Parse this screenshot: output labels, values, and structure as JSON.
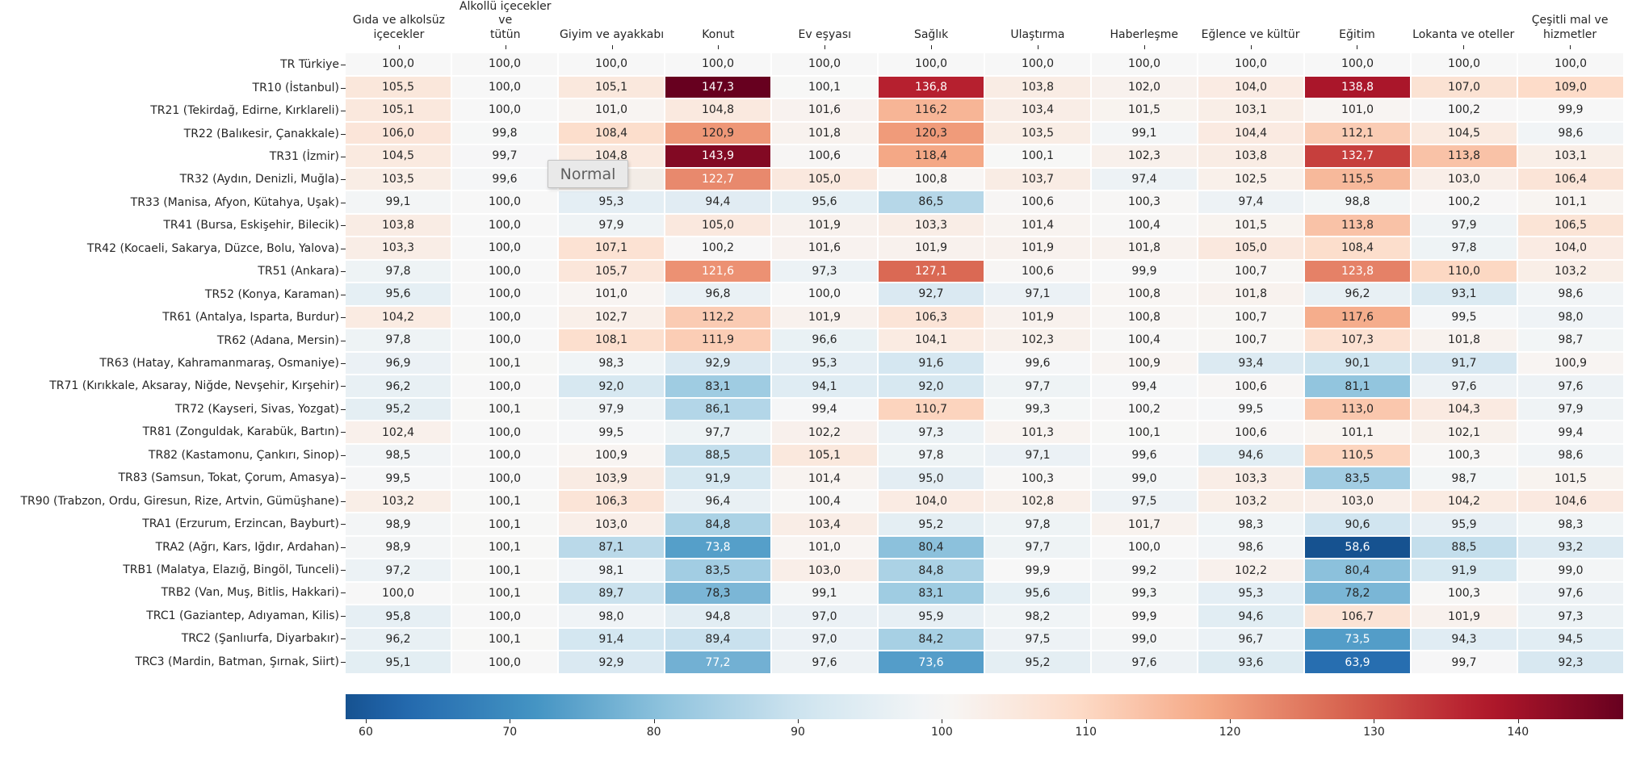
{
  "chart_data": {
    "type": "heatmap",
    "description": "Regional price level indices for Turkey by COICOP spending category (Türkiye = 100), diverging RdBu colormap centered at 100",
    "columns": [
      "Gıda ve alkolsüz\niçecekler",
      "Alkollü içecekler ve\ntütün",
      "Giyim ve ayakkabı",
      "Konut",
      "Ev eşyası",
      "Sağlık",
      "Ulaştırma",
      "Haberleşme",
      "Eğlence ve kültür",
      "Eğitim",
      "Lokanta ve oteller",
      "Çeşitli mal ve\nhizmetler"
    ],
    "rows": [
      "TR Türkiye",
      "TR10 (İstanbul)",
      "TR21 (Tekirdağ, Edirne, Kırklareli)",
      "TR22 (Balıkesir, Çanakkale)",
      "TR31 (İzmir)",
      "TR32 (Aydın, Denizli, Muğla)",
      "TR33 (Manisa, Afyon, Kütahya, Uşak)",
      "TR41 (Bursa, Eskişehir, Bilecik)",
      "TR42 (Kocaeli, Sakarya, Düzce, Bolu, Yalova)",
      "TR51 (Ankara)",
      "TR52 (Konya, Karaman)",
      "TR61 (Antalya, Isparta, Burdur)",
      "TR62 (Adana, Mersin)",
      "TR63 (Hatay, Kahramanmaraş, Osmaniye)",
      "TR71 (Kırıkkale, Aksaray, Niğde, Nevşehir, Kırşehir)",
      "TR72 (Kayseri, Sivas, Yozgat)",
      "TR81 (Zonguldak, Karabük, Bartın)",
      "TR82 (Kastamonu, Çankırı, Sinop)",
      "TR83 (Samsun, Tokat, Çorum, Amasya)",
      "TR90 (Trabzon, Ordu, Giresun, Rize, Artvin, Gümüşhane)",
      "TRA1 (Erzurum, Erzincan, Bayburt)",
      "TRA2 (Ağrı, Kars, Iğdır, Ardahan)",
      "TRB1 (Malatya, Elazığ, Bingöl, Tunceli)",
      "TRB2 (Van, Muş, Bitlis, Hakkari)",
      "TRC1 (Gaziantep, Adıyaman, Kilis)",
      "TRC2 (Şanlıurfa, Diyarbakır)",
      "TRC3 (Mardin, Batman, Şırnak, Siirt)"
    ],
    "values": [
      [
        100.0,
        100.0,
        100.0,
        100.0,
        100.0,
        100.0,
        100.0,
        100.0,
        100.0,
        100.0,
        100.0,
        100.0
      ],
      [
        105.5,
        100.0,
        105.1,
        147.3,
        100.1,
        136.8,
        103.8,
        102.0,
        104.0,
        138.8,
        107.0,
        109.0
      ],
      [
        105.1,
        100.0,
        101.0,
        104.8,
        101.6,
        116.2,
        103.4,
        101.5,
        103.1,
        101.0,
        100.2,
        99.9
      ],
      [
        106.0,
        99.8,
        108.4,
        120.9,
        101.8,
        120.3,
        103.5,
        99.1,
        104.4,
        112.1,
        104.5,
        98.6
      ],
      [
        104.5,
        99.7,
        104.8,
        143.9,
        100.6,
        118.4,
        100.1,
        102.3,
        103.8,
        132.7,
        113.8,
        103.1
      ],
      [
        103.5,
        99.6,
        null,
        122.7,
        105.0,
        100.8,
        103.7,
        97.4,
        102.5,
        115.5,
        103.0,
        106.4
      ],
      [
        99.1,
        100.0,
        95.3,
        94.4,
        95.6,
        86.5,
        100.6,
        100.3,
        97.4,
        98.8,
        100.2,
        101.1
      ],
      [
        103.8,
        100.0,
        97.9,
        105.0,
        101.9,
        103.3,
        101.4,
        100.4,
        101.5,
        113.8,
        97.9,
        106.5
      ],
      [
        103.3,
        100.0,
        107.1,
        100.2,
        101.6,
        101.9,
        101.9,
        101.8,
        105.0,
        108.4,
        97.8,
        104.0
      ],
      [
        97.8,
        100.0,
        105.7,
        121.6,
        97.3,
        127.1,
        100.6,
        99.9,
        100.7,
        123.8,
        110.0,
        103.2
      ],
      [
        95.6,
        100.0,
        101.0,
        96.8,
        100.0,
        92.7,
        97.1,
        100.8,
        101.8,
        96.2,
        93.1,
        98.6
      ],
      [
        104.2,
        100.0,
        102.7,
        112.2,
        101.9,
        106.3,
        101.9,
        100.8,
        100.7,
        117.6,
        99.5,
        98.0
      ],
      [
        97.8,
        100.0,
        108.1,
        111.9,
        96.6,
        104.1,
        102.3,
        100.4,
        100.7,
        107.3,
        101.8,
        98.7
      ],
      [
        96.9,
        100.1,
        98.3,
        92.9,
        95.3,
        91.6,
        99.6,
        100.9,
        93.4,
        90.1,
        91.7,
        100.9
      ],
      [
        96.2,
        100.0,
        92.0,
        83.1,
        94.1,
        92.0,
        97.7,
        99.4,
        100.6,
        81.1,
        97.6,
        97.6
      ],
      [
        95.2,
        100.1,
        97.9,
        86.1,
        99.4,
        110.7,
        99.3,
        100.2,
        99.5,
        113.0,
        104.3,
        97.9
      ],
      [
        102.4,
        100.0,
        99.5,
        97.7,
        102.2,
        97.3,
        101.3,
        100.1,
        100.6,
        101.1,
        102.1,
        99.4
      ],
      [
        98.5,
        100.0,
        100.9,
        88.5,
        105.1,
        97.8,
        97.1,
        99.6,
        94.6,
        110.5,
        100.3,
        98.6
      ],
      [
        99.5,
        100.0,
        103.9,
        91.9,
        101.4,
        95.0,
        100.3,
        99.0,
        103.3,
        83.5,
        98.7,
        101.5
      ],
      [
        103.2,
        100.1,
        106.3,
        96.4,
        100.4,
        104.0,
        102.8,
        97.5,
        103.2,
        103.0,
        104.2,
        104.6
      ],
      [
        98.9,
        100.1,
        103.0,
        84.8,
        103.4,
        95.2,
        97.8,
        101.7,
        98.3,
        90.6,
        95.9,
        98.3
      ],
      [
        98.9,
        100.1,
        87.1,
        73.8,
        101.0,
        80.4,
        97.7,
        100.0,
        98.6,
        58.6,
        88.5,
        93.2
      ],
      [
        97.2,
        100.1,
        98.1,
        83.5,
        103.0,
        84.8,
        99.9,
        99.2,
        102.2,
        80.4,
        91.9,
        99.0
      ],
      [
        100.0,
        100.1,
        89.7,
        78.3,
        99.1,
        83.1,
        95.6,
        99.3,
        95.3,
        78.2,
        100.3,
        97.6
      ],
      [
        95.8,
        100.0,
        98.0,
        94.8,
        97.0,
        95.9,
        98.2,
        99.9,
        94.6,
        106.7,
        101.9,
        97.3
      ],
      [
        96.2,
        100.1,
        91.4,
        89.4,
        97.0,
        84.2,
        97.5,
        99.0,
        96.7,
        73.5,
        94.3,
        94.5
      ],
      [
        95.1,
        100.0,
        92.9,
        77.2,
        97.6,
        73.6,
        95.2,
        97.6,
        93.6,
        63.9,
        99.7,
        92.3
      ]
    ],
    "hidden_cell": {
      "row": "TR32 (Aydın, Denizli, Muğla)",
      "column": "Giyim ve ayakkabı",
      "reason": "covered by tooltip"
    },
    "decimal_separator": ",",
    "colormap": {
      "name": "RdBu_r",
      "center": 100,
      "vmin": 58.6,
      "vmax": 147.3,
      "norm_domain": [
        52.7,
        147.3
      ],
      "stops_low_to_high": [
        "#053061",
        "#2166ac",
        "#4393c3",
        "#92c5de",
        "#d1e5f0",
        "#f7f7f7",
        "#fddbc7",
        "#f4a582",
        "#d6604d",
        "#b2182b",
        "#67001f"
      ]
    },
    "colorbar": {
      "orientation": "horizontal",
      "ticks": [
        60,
        70,
        80,
        90,
        100,
        110,
        120,
        130,
        140
      ],
      "range": [
        58.6,
        147.3
      ]
    },
    "tooltip": {
      "text": "Normal"
    },
    "text_colors": {
      "dark": "#262626",
      "light": "#ffffff"
    },
    "grid_line_color": "#ffffff"
  }
}
